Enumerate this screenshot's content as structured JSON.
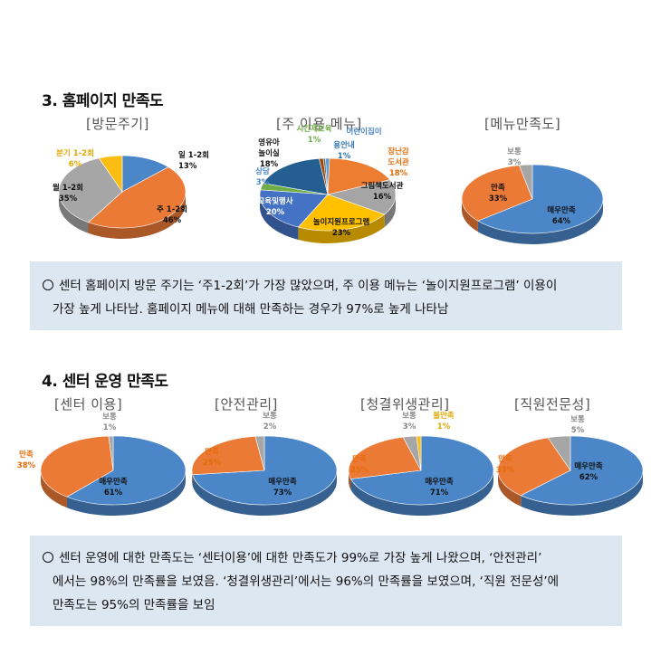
{
  "section3": {
    "title": "3. 홈페이지 만족도",
    "note_line1": "센터 홈페이지 방문 주기는 ‘주1-2회’가 가장 많았으며, 주 이용 메뉴는 ‘놀이지원프로그램’ 이용이",
    "note_line2": "가장 높게 나타남. 홈페이지 메뉴에 대해 만족하는 경우가 97%로 높게 나타남"
  },
  "section4": {
    "title": "4. 센터 운영 만족도",
    "note_line1": "센터 운영에 대한 만족도는 ‘센터이용’에 대한 만족도가 99%로 가장 높게 나왔으며, ‘안전관리’",
    "note_line2": "에서는 98%의 만족률을 보였음. ‘청결위생관리’에서는 96%의 만족률을 보였으며, ‘직원 전문성’에",
    "note_line3": "만족도는 95%의 만족률을 보임"
  },
  "chart_data": [
    {
      "type": "pie",
      "title": "[방문주기]",
      "slices": [
        {
          "label": "일 1-2회",
          "value": 13,
          "pct": "13%",
          "color": "#4a86c8"
        },
        {
          "label": "주 1-2회",
          "value": 46,
          "pct": "46%",
          "color": "#ec7a37"
        },
        {
          "label": "월 1-2회",
          "value": 35,
          "pct": "35%",
          "color": "#a6a6a6"
        },
        {
          "label": "분기 1-2회",
          "value": 6,
          "pct": "6%",
          "color": "#fbbd12"
        }
      ]
    },
    {
      "type": "pie",
      "title": "[주 이용 메뉴]",
      "slices": [
        {
          "label": "용안내",
          "value": 1,
          "pct": "1%",
          "color": "#5b9bd5"
        },
        {
          "label": "장난감 도서관",
          "value": 18,
          "pct": "18%",
          "color": "#ed7d31"
        },
        {
          "label": "그림책도서관",
          "value": 16,
          "pct": "16%",
          "color": "#a5a5a5"
        },
        {
          "label": "놀이지원프로그램",
          "value": 23,
          "pct": "23%",
          "color": "#ffc000"
        },
        {
          "label": "교육및행사",
          "value": 20,
          "pct": "20%",
          "color": "#4472c4"
        },
        {
          "label": "상담",
          "value": 3,
          "pct": "3%",
          "color": "#70ad47"
        },
        {
          "label": "영유아 놀이실",
          "value": 18,
          "pct": "18%",
          "color": "#255e91"
        },
        {
          "label": "시간제보육",
          "value": 1,
          "pct": "1%",
          "color": "#9e480e"
        },
        {
          "label": "어린이집이",
          "value": 0.5,
          "pct": "",
          "color": "#636363"
        }
      ]
    },
    {
      "type": "pie",
      "title": "[메뉴만족도]",
      "slices": [
        {
          "label": "매우만족",
          "value": 64,
          "pct": "64%",
          "color": "#4a86c8"
        },
        {
          "label": "만족",
          "value": 33,
          "pct": "33%",
          "color": "#ec7a37"
        },
        {
          "label": "보통",
          "value": 3,
          "pct": "3%",
          "color": "#a6a6a6"
        }
      ]
    },
    {
      "type": "pie",
      "title": "[센터 이용]",
      "slices": [
        {
          "label": "매우만족",
          "value": 61,
          "pct": "61%",
          "color": "#4a86c8"
        },
        {
          "label": "만족",
          "value": 38,
          "pct": "38%",
          "color": "#ec7a37"
        },
        {
          "label": "보통",
          "value": 1,
          "pct": "1%",
          "color": "#a6a6a6"
        }
      ]
    },
    {
      "type": "pie",
      "title": "[안전관리]",
      "slices": [
        {
          "label": "매우만족",
          "value": 73,
          "pct": "73%",
          "color": "#4a86c8"
        },
        {
          "label": "만족",
          "value": 25,
          "pct": "25%",
          "color": "#ec7a37"
        },
        {
          "label": "보통",
          "value": 2,
          "pct": "2%",
          "color": "#a6a6a6"
        }
      ]
    },
    {
      "type": "pie",
      "title": "[청결위생관리]",
      "slices": [
        {
          "label": "매우만족",
          "value": 71,
          "pct": "71%",
          "color": "#4a86c8"
        },
        {
          "label": "만족",
          "value": 25,
          "pct": "25%",
          "color": "#ec7a37"
        },
        {
          "label": "보통",
          "value": 3,
          "pct": "3%",
          "color": "#a6a6a6"
        },
        {
          "label": "불만족",
          "value": 1,
          "pct": "1%",
          "color": "#fbbd12"
        }
      ]
    },
    {
      "type": "pie",
      "title": "[직원전문성]",
      "slices": [
        {
          "label": "매우만족",
          "value": 62,
          "pct": "62%",
          "color": "#4a86c8"
        },
        {
          "label": "만족",
          "value": 33,
          "pct": "33%",
          "color": "#ec7a37"
        },
        {
          "label": "보통",
          "value": 5,
          "pct": "5%",
          "color": "#a6a6a6"
        }
      ]
    }
  ]
}
